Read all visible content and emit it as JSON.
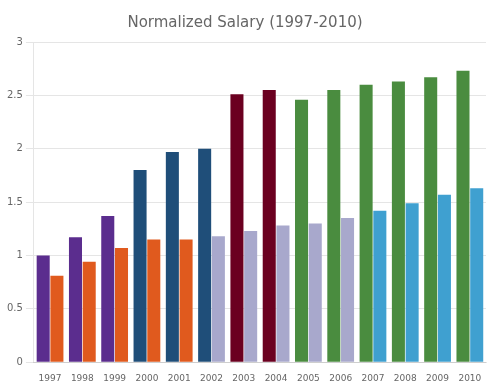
{
  "chart_data": {
    "type": "bar",
    "title": "Normalized Salary (1997-2010)",
    "categories": [
      "1997",
      "1998",
      "1999",
      "2000",
      "2001",
      "2002",
      "2003",
      "2004",
      "2005",
      "2006",
      "2007",
      "2008",
      "2009",
      "2010"
    ],
    "series": [
      {
        "values": [
          1.0,
          1.17,
          1.37,
          1.8,
          1.97,
          2.0,
          2.51,
          2.55,
          2.46,
          2.55,
          2.6,
          2.63,
          2.67,
          2.73
        ],
        "colors": [
          "#5b2d8e",
          "#5b2d8e",
          "#5b2d8e",
          "#1f4e79",
          "#1f4e79",
          "#1f4e79",
          "#6b0020",
          "#6b0020",
          "#4a8c3f",
          "#4a8c3f",
          "#4a8c3f",
          "#4a8c3f",
          "#4a8c3f",
          "#4a8c3f"
        ]
      },
      {
        "values": [
          0.81,
          0.94,
          1.07,
          1.15,
          1.15,
          1.18,
          1.23,
          1.28,
          1.3,
          1.35,
          1.42,
          1.49,
          1.57,
          1.63
        ],
        "colors": [
          "#e05a1e",
          "#e05a1e",
          "#e05a1e",
          "#e05a1e",
          "#e05a1e",
          "#a8a8cc",
          "#a8a8cc",
          "#a8a8cc",
          "#a8a8cc",
          "#a8a8cc",
          "#3fa0d0",
          "#3fa0d0",
          "#3fa0d0",
          "#3fa0d0"
        ]
      }
    ],
    "ylim": [
      0,
      3.0
    ],
    "yticks": [
      0,
      0.5,
      1,
      1.5,
      2,
      2.5,
      3
    ],
    "grid": "y"
  }
}
